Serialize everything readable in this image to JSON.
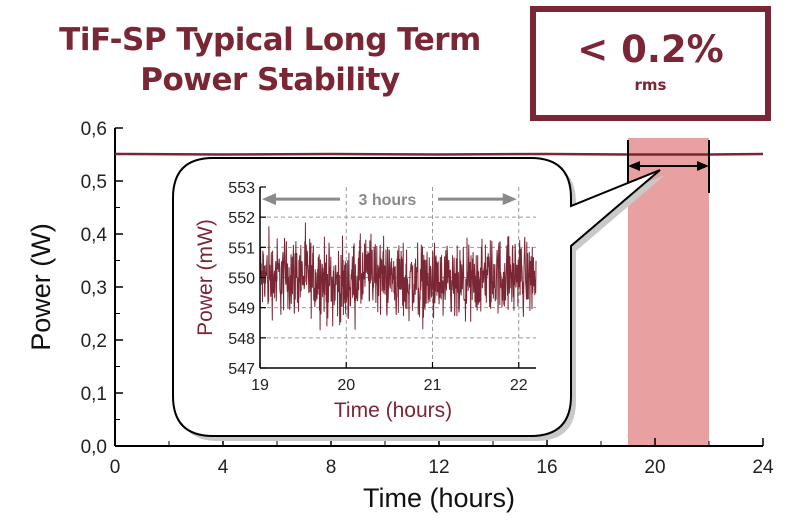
{
  "header": {
    "title_line1": "TiF-SP Typical Long Term",
    "title_line2": "Power Stability",
    "badge_value": "< 0.2%",
    "badge_sub": "rms"
  },
  "colors": {
    "accent": "#7b2634",
    "highlight": "#e8a0a0",
    "arrow_gray": "#8a8a8a"
  },
  "chart_data": [
    {
      "type": "line",
      "xlabel": "Time (hours)",
      "ylabel": "Power (W)",
      "xlim": [
        0,
        24
      ],
      "ylim": [
        0.0,
        0.6
      ],
      "xticks": [
        "0",
        "4",
        "8",
        "12",
        "16",
        "20",
        "24"
      ],
      "yticks": [
        "0,0",
        "0,1",
        "0,2",
        "0,3",
        "0,4",
        "0,5",
        "0,6"
      ],
      "grid": false,
      "series": [
        {
          "x": [
            0,
            4,
            8,
            12,
            16,
            19,
            22,
            24
          ],
          "y": [
            0.551,
            0.55,
            0.551,
            0.55,
            0.551,
            0.55,
            0.55,
            0.551
          ]
        }
      ],
      "highlight_region": {
        "x_start": 19,
        "x_end": 22
      },
      "span_annotation": {
        "x_start": 19,
        "x_end": 22
      }
    },
    {
      "type": "line",
      "xlabel": "Time (hours)",
      "ylabel": "Power (mW)",
      "xlim": [
        19,
        22.2
      ],
      "ylim": [
        547,
        553
      ],
      "xticks": [
        "19",
        "20",
        "21",
        "22"
      ],
      "yticks": [
        "547",
        "548",
        "549",
        "550",
        "551",
        "552",
        "553"
      ],
      "grid": true,
      "annotation": {
        "text": "3 hours",
        "x_start": 19.0,
        "x_end": 22.0,
        "y": 552.6
      },
      "series": [
        {
          "x": [
            19.0,
            19.5,
            20.0,
            20.3,
            20.6,
            21.0,
            21.3,
            21.6,
            22.0,
            22.2
          ],
          "y": [
            550.0,
            550.1,
            549.7,
            550.2,
            549.9,
            549.8,
            549.6,
            550.0,
            550.1,
            550.0
          ],
          "noise_amplitude_mW": 1.1
        }
      ]
    }
  ]
}
